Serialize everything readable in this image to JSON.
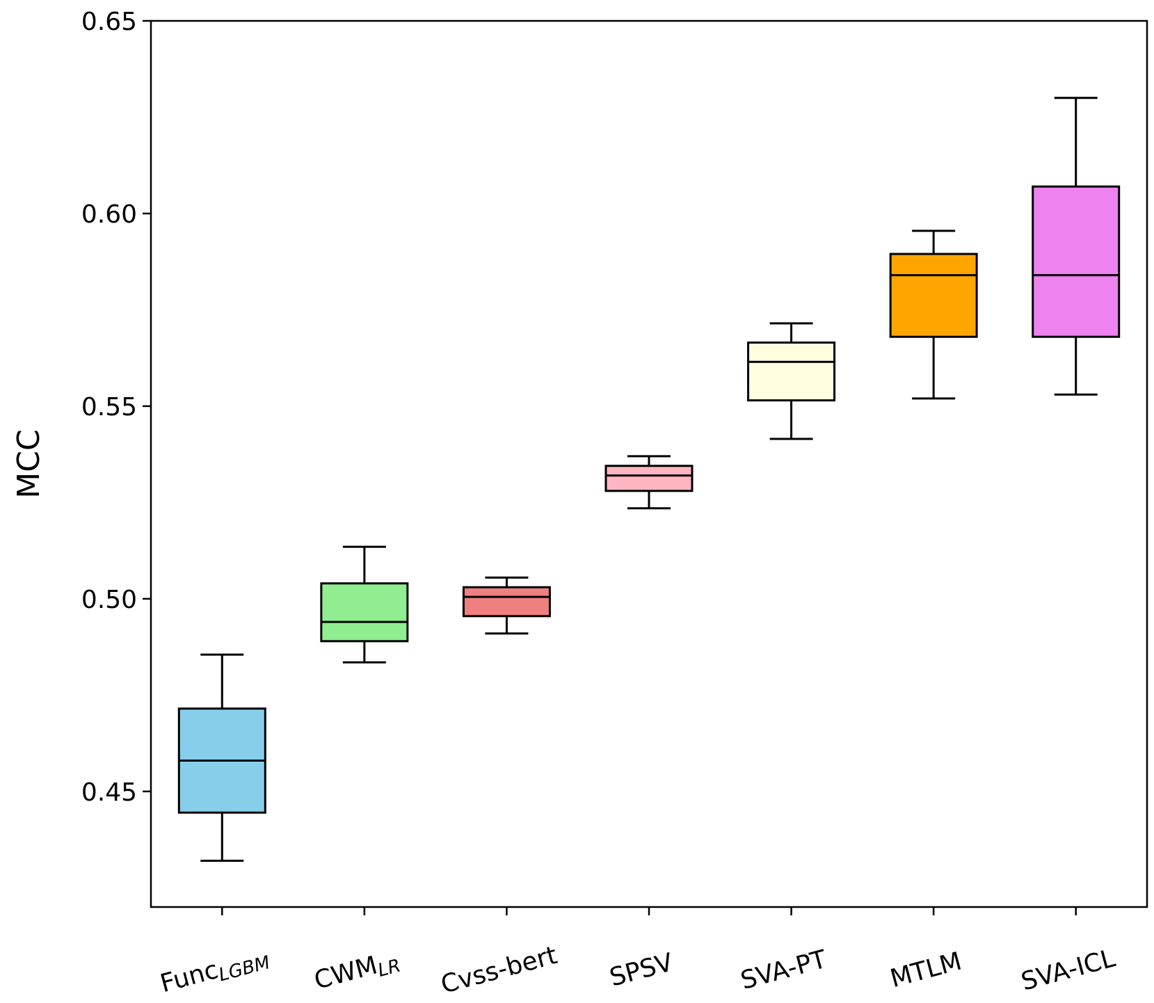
{
  "chart_data": {
    "type": "boxplot",
    "title": "",
    "xlabel": "",
    "ylabel": "MCC",
    "ylim": [
      0.42,
      0.65
    ],
    "yticks": [
      "0.45",
      "0.50",
      "0.55",
      "0.60",
      "0.65"
    ],
    "grid": false,
    "series": [
      {
        "name": "Func",
        "subscript": "LGBM",
        "color": "#87ceeb",
        "whisker_low": 0.432,
        "q1": 0.4445,
        "median": 0.458,
        "q3": 0.4715,
        "whisker_high": 0.4855
      },
      {
        "name": "CWM",
        "subscript": "LR",
        "color": "#90ee90",
        "whisker_low": 0.4835,
        "q1": 0.489,
        "median": 0.494,
        "q3": 0.504,
        "whisker_high": 0.5135
      },
      {
        "name": "Cvss-bert",
        "subscript": "",
        "color": "#f08080",
        "whisker_low": 0.491,
        "q1": 0.4955,
        "median": 0.5005,
        "q3": 0.503,
        "whisker_high": 0.5055
      },
      {
        "name": "SPSV",
        "subscript": "",
        "color": "#ffb6c1",
        "whisker_low": 0.5235,
        "q1": 0.528,
        "median": 0.532,
        "q3": 0.5345,
        "whisker_high": 0.537
      },
      {
        "name": "SVA-PT",
        "subscript": "",
        "color": "#fffde0",
        "whisker_low": 0.5415,
        "q1": 0.5515,
        "median": 0.5615,
        "q3": 0.5665,
        "whisker_high": 0.5715
      },
      {
        "name": "MTLM",
        "subscript": "",
        "color": "#ffa500",
        "whisker_low": 0.552,
        "q1": 0.568,
        "median": 0.584,
        "q3": 0.5895,
        "whisker_high": 0.5955
      },
      {
        "name": "SVA-ICL",
        "subscript": "",
        "color": "#ee82ee",
        "whisker_low": 0.553,
        "q1": 0.568,
        "median": 0.584,
        "q3": 0.607,
        "whisker_high": 0.63
      }
    ]
  }
}
